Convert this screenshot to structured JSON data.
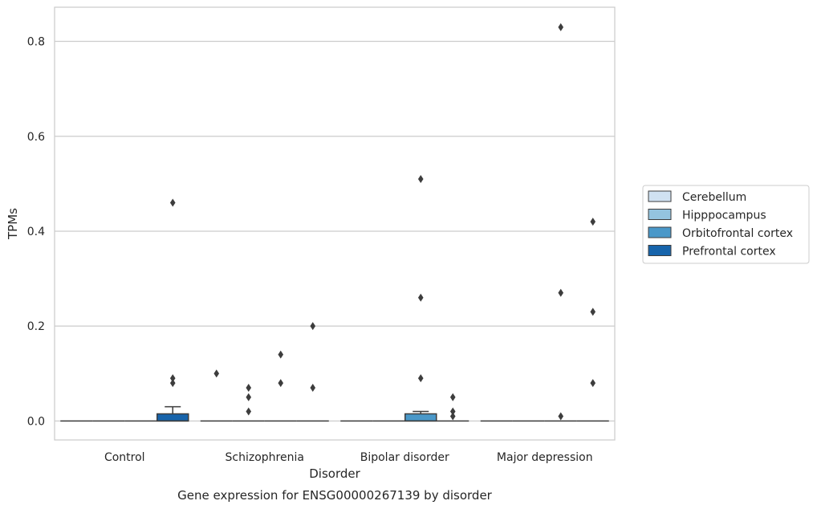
{
  "chart_data": {
    "type": "box",
    "title": "",
    "caption": "Gene expression for ENSG00000267139 by disorder",
    "xlabel": "Disorder",
    "ylabel": "TPMs",
    "ylim": [
      -0.04,
      0.872
    ],
    "yticks": [
      0.0,
      0.2,
      0.4,
      0.6,
      0.8
    ],
    "ytick_labels": [
      "0.0",
      "0.2",
      "0.4",
      "0.6",
      "0.8"
    ],
    "grid": "horizontal",
    "legend_position": "right",
    "categories": [
      "Control",
      "Schizophrenia",
      "Bipolar disorder",
      "Major depression"
    ],
    "series": [
      {
        "name": "Cerebellum",
        "color": "#d0e1f2",
        "boxes": [
          {
            "q1": 0,
            "median": 0,
            "q3": 0,
            "whisker_low": 0,
            "whisker_high": 0,
            "outliers": []
          },
          {
            "q1": 0,
            "median": 0,
            "q3": 0,
            "whisker_low": 0,
            "whisker_high": 0,
            "outliers": [
              0.1
            ]
          },
          {
            "q1": 0,
            "median": 0,
            "q3": 0,
            "whisker_low": 0,
            "whisker_high": 0,
            "outliers": []
          },
          {
            "q1": 0,
            "median": 0,
            "q3": 0,
            "whisker_low": 0,
            "whisker_high": 0,
            "outliers": []
          }
        ]
      },
      {
        "name": "Hipppocampus",
        "color": "#94c4df",
        "boxes": [
          {
            "q1": 0,
            "median": 0,
            "q3": 0,
            "whisker_low": 0,
            "whisker_high": 0,
            "outliers": []
          },
          {
            "q1": 0,
            "median": 0,
            "q3": 0,
            "whisker_low": 0,
            "whisker_high": 0,
            "outliers": [
              0.07,
              0.05,
              0.02
            ]
          },
          {
            "q1": 0,
            "median": 0,
            "q3": 0,
            "whisker_low": 0,
            "whisker_high": 0,
            "outliers": []
          },
          {
            "q1": 0,
            "median": 0,
            "q3": 0,
            "whisker_low": 0,
            "whisker_high": 0,
            "outliers": []
          }
        ]
      },
      {
        "name": "Orbitofrontal cortex",
        "color": "#4a98c9",
        "boxes": [
          {
            "q1": 0,
            "median": 0,
            "q3": 0,
            "whisker_low": 0,
            "whisker_high": 0,
            "outliers": []
          },
          {
            "q1": 0,
            "median": 0,
            "q3": 0,
            "whisker_low": 0,
            "whisker_high": 0,
            "outliers": [
              0.14,
              0.08
            ]
          },
          {
            "q1": 0,
            "median": 0,
            "q3": 0.015,
            "whisker_low": 0,
            "whisker_high": 0.02,
            "outliers": [
              0.51,
              0.26,
              0.09
            ]
          },
          {
            "q1": 0,
            "median": 0,
            "q3": 0,
            "whisker_low": 0,
            "whisker_high": 0,
            "outliers": [
              0.83,
              0.27,
              0.01
            ]
          }
        ]
      },
      {
        "name": "Prefrontal cortex",
        "color": "#1764ab",
        "boxes": [
          {
            "q1": 0,
            "median": 0,
            "q3": 0.015,
            "whisker_low": 0,
            "whisker_high": 0.03,
            "outliers": [
              0.46,
              0.09,
              0.08
            ]
          },
          {
            "q1": 0,
            "median": 0,
            "q3": 0,
            "whisker_low": 0,
            "whisker_high": 0,
            "outliers": [
              0.2,
              0.07
            ]
          },
          {
            "q1": 0,
            "median": 0,
            "q3": 0,
            "whisker_low": 0,
            "whisker_high": 0,
            "outliers": [
              0.05,
              0.02,
              0.01
            ]
          },
          {
            "q1": 0,
            "median": 0,
            "q3": 0,
            "whisker_low": 0,
            "whisker_high": 0,
            "outliers": [
              0.42,
              0.23,
              0.08
            ]
          }
        ]
      }
    ]
  }
}
